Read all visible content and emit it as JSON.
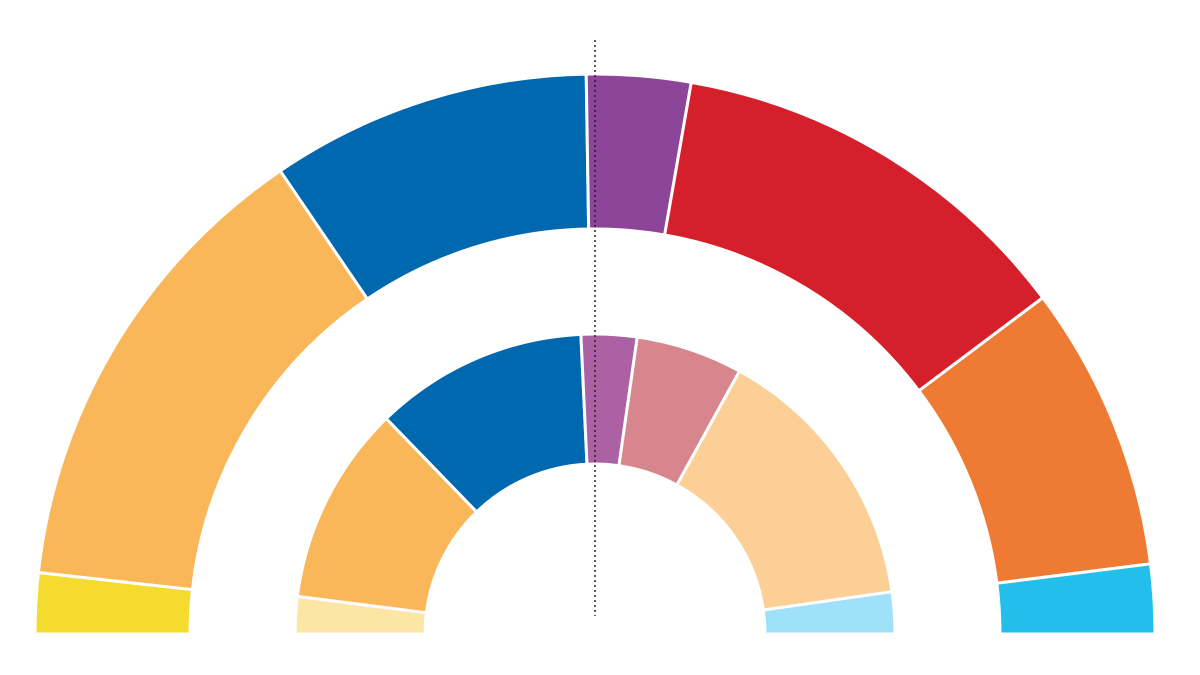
{
  "chart_data": [
    {
      "type": "pie",
      "ring": "outer",
      "start_angle_deg": 180,
      "end_angle_deg": 0,
      "title": "",
      "series": [
        {
          "color": "#F5DB2E",
          "value": 3.5
        },
        {
          "color": "#F9B75A",
          "value": 27.5
        },
        {
          "color": "#0068AF",
          "value": 18.5
        },
        {
          "color": "#8D4599",
          "value": 6
        },
        {
          "color": "#D51F2A",
          "value": 24
        },
        {
          "color": "#EF7A34",
          "value": 16.5
        },
        {
          "color": "#22BFEB",
          "value": 4
        }
      ]
    },
    {
      "type": "pie",
      "ring": "inner",
      "start_angle_deg": 180,
      "end_angle_deg": 0,
      "title": "",
      "series": [
        {
          "color": "#FBE6A6",
          "value": 4
        },
        {
          "color": "#F9B75A",
          "value": 21.5
        },
        {
          "color": "#0068AF",
          "value": 23
        },
        {
          "color": "#AC61A4",
          "value": 6
        },
        {
          "color": "#D6868C",
          "value": 11.5
        },
        {
          "color": "#FBCF96",
          "value": 29.5
        },
        {
          "color": "#9FE1F8",
          "value": 4.5
        }
      ]
    }
  ],
  "majority_line": {
    "style": "dotted",
    "color": "#222222"
  }
}
